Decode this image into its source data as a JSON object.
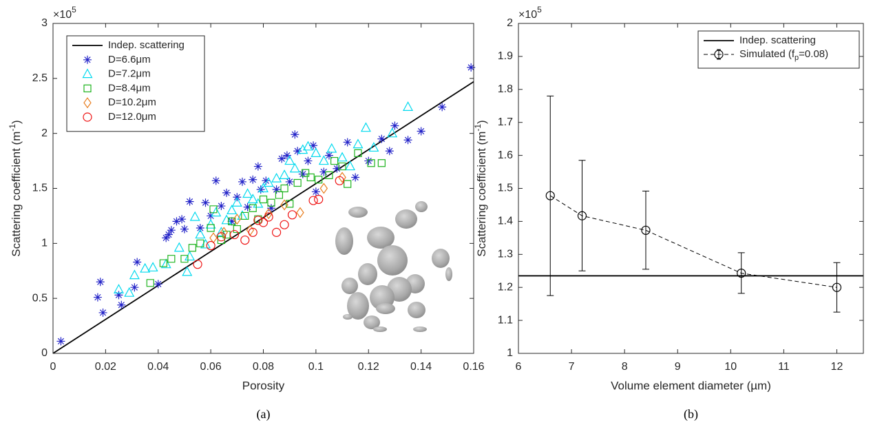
{
  "chart_data": [
    {
      "type": "scatter",
      "caption": "(a)",
      "xlabel": "Porosity",
      "ylabel": {
        "text": "Scattering coefficient (m",
        "sup": "-1",
        "tail": ")"
      },
      "y_exponent": {
        "base": "×10",
        "power": "5"
      },
      "xlim": [
        0,
        0.16
      ],
      "ylim": [
        0,
        3
      ],
      "xticks": [
        0,
        0.02,
        0.04,
        0.06,
        0.08,
        0.1,
        0.12,
        0.14,
        0.16
      ],
      "yticks": [
        0,
        0.5,
        1,
        1.5,
        2,
        2.5,
        3
      ],
      "legend": "upper left",
      "series": [
        {
          "name": "Indep. scattering",
          "mode": "line",
          "color": "#000000",
          "x": [
            0,
            0.16
          ],
          "values": [
            0,
            2.47
          ]
        },
        {
          "name": "D=6.6μm",
          "mode": "markers",
          "marker": "asterisk",
          "color": "#2323c8",
          "x": [
            0.003,
            0.017,
            0.018,
            0.019,
            0.025,
            0.026,
            0.031,
            0.032,
            0.04,
            0.043,
            0.044,
            0.045,
            0.047,
            0.049,
            0.05,
            0.052,
            0.056,
            0.058,
            0.06,
            0.062,
            0.064,
            0.066,
            0.068,
            0.07,
            0.072,
            0.074,
            0.076,
            0.078,
            0.079,
            0.081,
            0.083,
            0.085,
            0.087,
            0.089,
            0.09,
            0.092,
            0.093,
            0.095,
            0.097,
            0.099,
            0.1,
            0.103,
            0.105,
            0.108,
            0.112,
            0.115,
            0.12,
            0.125,
            0.128,
            0.13,
            0.135,
            0.14,
            0.148,
            0.159
          ],
          "values": [
            0.11,
            0.51,
            0.65,
            0.37,
            0.53,
            0.44,
            0.6,
            0.83,
            0.63,
            1.05,
            1.08,
            1.12,
            1.2,
            1.22,
            1.13,
            1.38,
            1.14,
            1.37,
            1.25,
            1.57,
            1.34,
            1.46,
            1.2,
            1.42,
            1.56,
            1.33,
            1.58,
            1.7,
            1.49,
            1.57,
            1.32,
            1.49,
            1.77,
            1.8,
            1.56,
            1.99,
            1.84,
            1.63,
            1.75,
            1.89,
            1.47,
            1.65,
            1.8,
            1.68,
            1.92,
            1.6,
            1.75,
            1.95,
            1.84,
            2.07,
            1.94,
            2.02,
            2.24,
            2.6
          ]
        },
        {
          "name": "D=7.2μm",
          "mode": "markers",
          "marker": "triangle",
          "color": "#00d9ee",
          "x": [
            0.025,
            0.029,
            0.031,
            0.035,
            0.038,
            0.043,
            0.048,
            0.051,
            0.052,
            0.054,
            0.056,
            0.058,
            0.06,
            0.062,
            0.064,
            0.066,
            0.068,
            0.07,
            0.072,
            0.074,
            0.076,
            0.078,
            0.08,
            0.082,
            0.085,
            0.088,
            0.09,
            0.092,
            0.095,
            0.097,
            0.1,
            0.103,
            0.106,
            0.11,
            0.113,
            0.116,
            0.119,
            0.122,
            0.129,
            0.135
          ],
          "values": [
            0.58,
            0.55,
            0.71,
            0.77,
            0.78,
            0.81,
            0.96,
            0.74,
            0.88,
            1.24,
            1.08,
            0.99,
            1.17,
            1.28,
            1.1,
            1.21,
            1.3,
            1.37,
            1.25,
            1.45,
            1.4,
            1.36,
            1.5,
            1.55,
            1.59,
            1.62,
            1.75,
            1.68,
            1.85,
            1.88,
            1.82,
            1.75,
            1.86,
            1.78,
            1.7,
            1.9,
            2.05,
            1.87,
            2,
            2.24
          ]
        },
        {
          "name": "D=8.4μm",
          "mode": "markers",
          "marker": "square",
          "color": "#1fb41f",
          "x": [
            0.037,
            0.042,
            0.045,
            0.05,
            0.053,
            0.056,
            0.06,
            0.061,
            0.064,
            0.066,
            0.068,
            0.07,
            0.073,
            0.076,
            0.078,
            0.08,
            0.083,
            0.086,
            0.088,
            0.09,
            0.093,
            0.096,
            0.098,
            0.101,
            0.105,
            0.107,
            0.11,
            0.112,
            0.116,
            0.121,
            0.125
          ],
          "values": [
            0.64,
            0.82,
            0.86,
            0.86,
            0.96,
            1,
            1.14,
            1.31,
            1.03,
            1.08,
            1.2,
            1.13,
            1.25,
            1.32,
            1.22,
            1.4,
            1.37,
            1.44,
            1.5,
            1.36,
            1.55,
            1.64,
            1.6,
            1.58,
            1.62,
            1.75,
            1.7,
            1.54,
            1.82,
            1.73,
            1.73
          ]
        },
        {
          "name": "D=10.2μm",
          "mode": "markers",
          "marker": "diamond",
          "color": "#e87d1e",
          "x": [
            0.061,
            0.065,
            0.07,
            0.075,
            0.082,
            0.088,
            0.094,
            0.103,
            0.11
          ],
          "values": [
            1.05,
            1.1,
            1.22,
            1.12,
            1.27,
            1.35,
            1.28,
            1.5,
            1.6
          ]
        },
        {
          "name": "D=12.0μm",
          "mode": "markers",
          "marker": "circle",
          "color": "#ee1111",
          "x": [
            0.055,
            0.06,
            0.064,
            0.069,
            0.073,
            0.076,
            0.078,
            0.08,
            0.082,
            0.085,
            0.088,
            0.091,
            0.099,
            0.101,
            0.109
          ],
          "values": [
            0.81,
            0.98,
            1.06,
            1.08,
            1.03,
            1.1,
            1.21,
            1.19,
            1.24,
            1.1,
            1.17,
            1.26,
            1.39,
            1.4,
            1.57
          ]
        }
      ]
    },
    {
      "type": "errorbar",
      "caption": "(b)",
      "xlabel": "Volume element diameter (µm)",
      "ylabel": {
        "text": "Scattering coefficient (m",
        "sup": "-1",
        "tail": ")"
      },
      "y_exponent": {
        "base": "×10",
        "power": "5"
      },
      "xlim": [
        6,
        12.5
      ],
      "ylim": [
        1,
        2
      ],
      "xticks": [
        6,
        7,
        8,
        9,
        10,
        11,
        12
      ],
      "yticks": [
        1,
        1.1,
        1.2,
        1.3,
        1.4,
        1.5,
        1.6,
        1.7,
        1.8,
        1.9,
        2
      ],
      "legend": "upper right",
      "series": [
        {
          "name": "Indep. scattering",
          "mode": "hline",
          "color": "#000000",
          "values": [
            1.235
          ]
        },
        {
          "name": "Simulated (f",
          "name_sub": "p",
          "name_tail": "=0.08)",
          "mode": "errorbar",
          "marker": "circle",
          "color": "#000000",
          "x": [
            6.6,
            7.2,
            8.4,
            10.2,
            12
          ],
          "values": [
            1.478,
            1.417,
            1.373,
            1.243,
            1.2
          ],
          "lower": [
            1.175,
            1.25,
            1.255,
            1.182,
            1.125
          ],
          "upper": [
            1.78,
            1.585,
            1.492,
            1.305,
            1.275
          ]
        }
      ]
    }
  ]
}
